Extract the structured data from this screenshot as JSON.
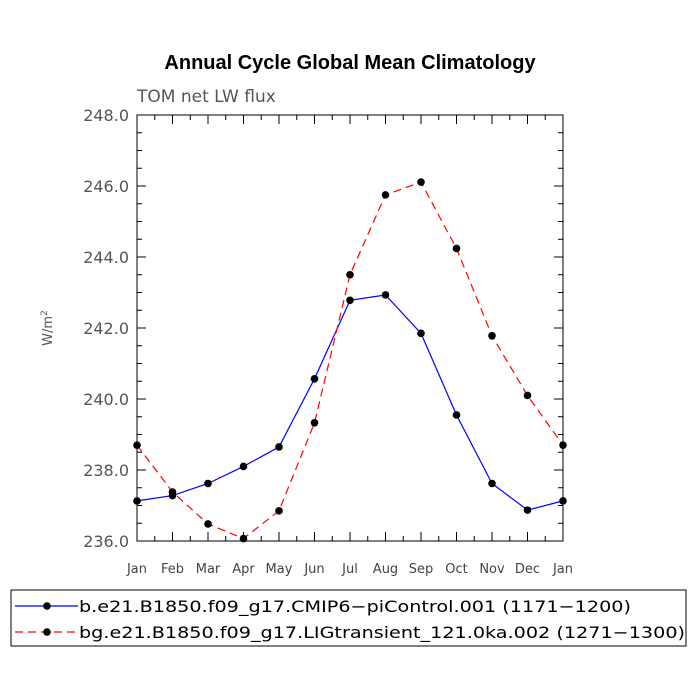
{
  "chart_data": {
    "type": "line",
    "title": "Annual Cycle Global Mean Climatology",
    "subtitle": "TOM net LW flux",
    "ylabel": "W/m",
    "ylabel_sup": "2",
    "xlabel": "",
    "categories": [
      "Jan",
      "Feb",
      "Mar",
      "Apr",
      "May",
      "Jun",
      "Jul",
      "Aug",
      "Sep",
      "Oct",
      "Nov",
      "Dec",
      "Jan"
    ],
    "ylim": [
      236.0,
      248.0
    ],
    "yticks": [
      "236.0",
      "238.0",
      "240.0",
      "242.0",
      "244.0",
      "246.0",
      "248.0"
    ],
    "grid": false,
    "legend_position": "bottom",
    "series": [
      {
        "name": "b.e21.B1850.f09_g17.CMIP6−piControl.001 (1171−1200)",
        "color": "#0000ff",
        "dash": "solid",
        "values": [
          237.13,
          237.28,
          237.62,
          238.1,
          238.65,
          240.57,
          242.78,
          242.93,
          241.85,
          239.55,
          237.62,
          236.87,
          237.13
        ]
      },
      {
        "name": "bg.e21.B1850.f09_g17.LIGtransient_121.0ka.002 (1271−1300)",
        "color": "#ff0000",
        "dash": "dashed",
        "values": [
          238.7,
          237.38,
          236.48,
          236.07,
          236.85,
          239.33,
          243.5,
          245.75,
          246.11,
          244.24,
          241.78,
          240.1,
          238.7
        ]
      }
    ]
  }
}
